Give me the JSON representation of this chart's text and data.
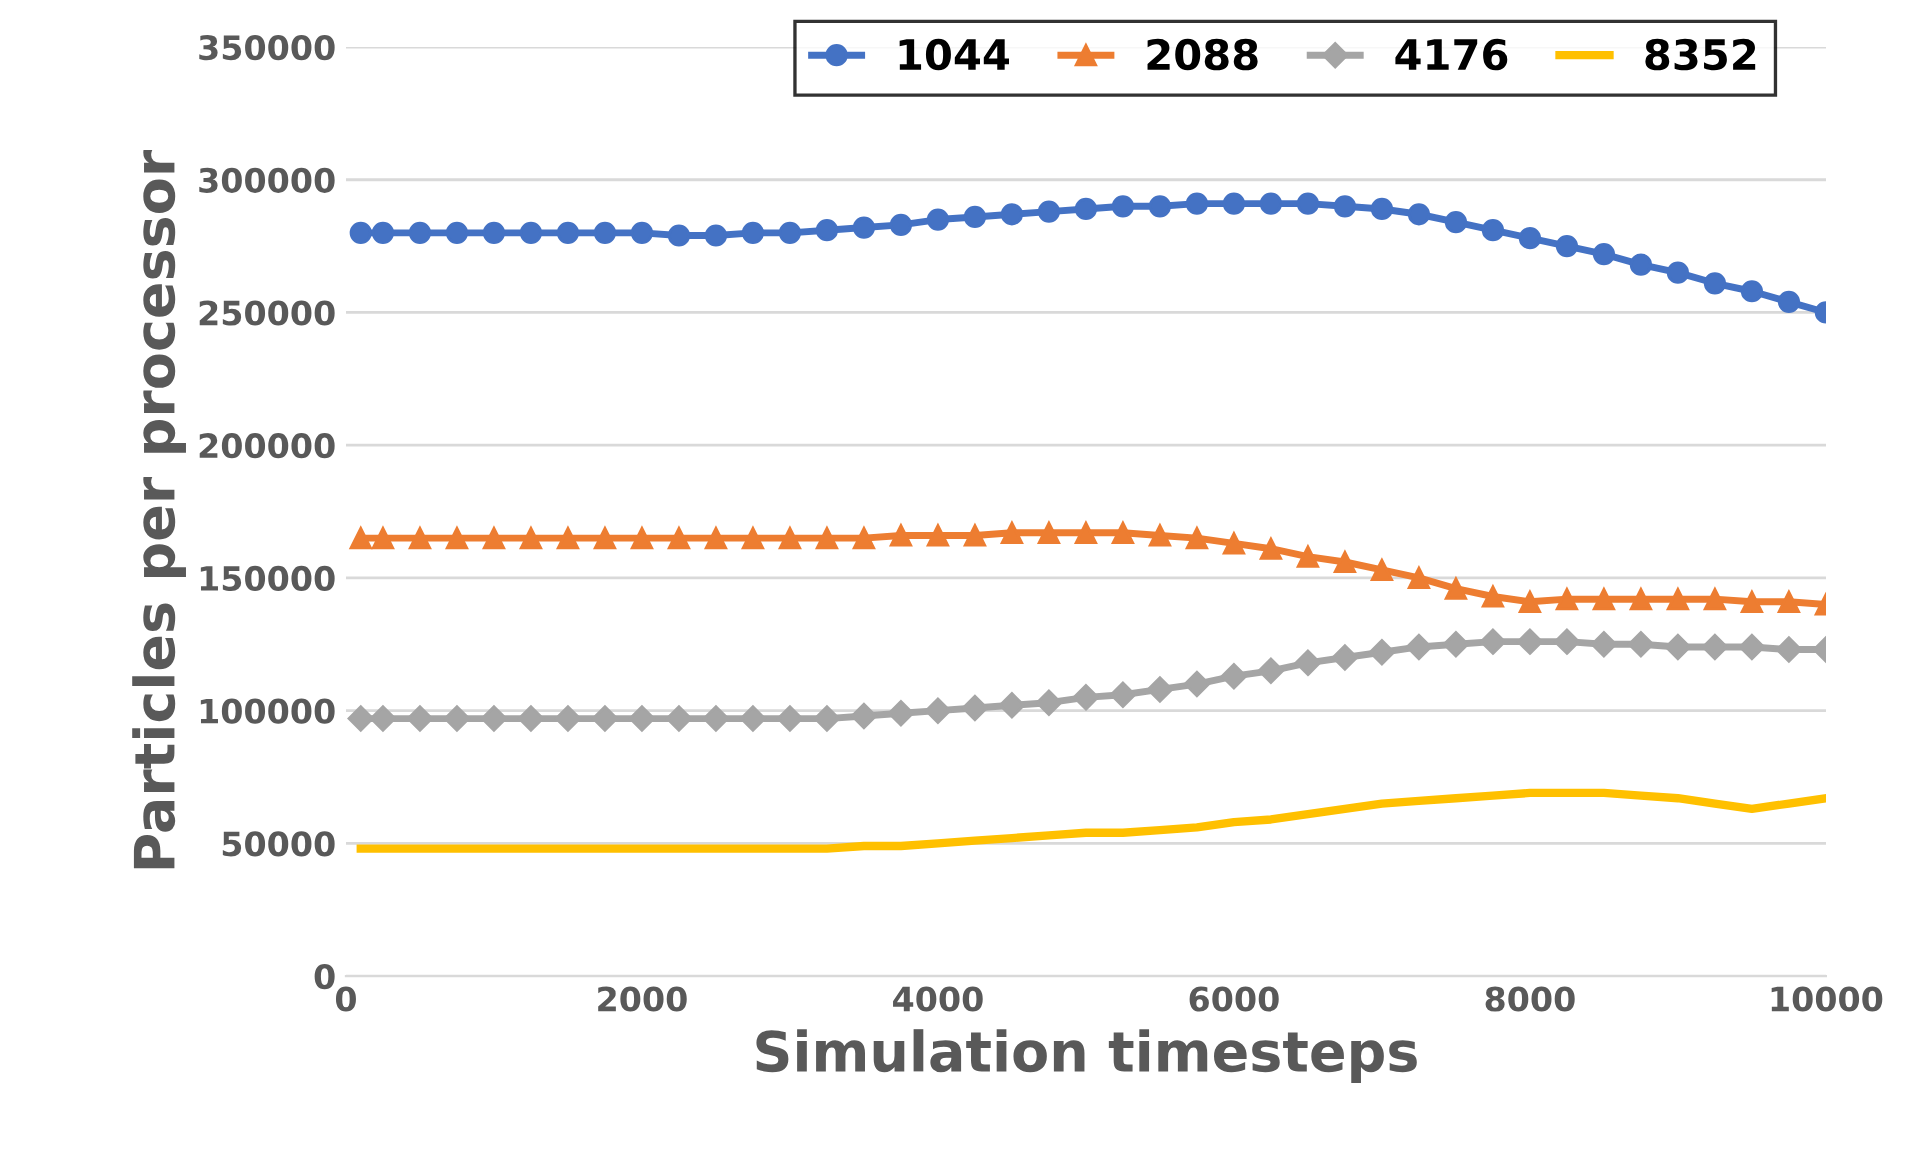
{
  "chart_data": {
    "type": "line",
    "xlabel": "Simulation timesteps",
    "ylabel": "Particles per processor",
    "x": [
      100,
      250,
      500,
      750,
      1000,
      1250,
      1500,
      1750,
      2000,
      2250,
      2500,
      2750,
      3000,
      3250,
      3500,
      3750,
      4000,
      4250,
      4500,
      4750,
      5000,
      5250,
      5500,
      5750,
      6000,
      6250,
      6500,
      6750,
      7000,
      7250,
      7500,
      7750,
      8000,
      8250,
      8500,
      8750,
      9000,
      9250,
      9500,
      9750,
      10000
    ],
    "series": [
      {
        "name": "1044",
        "color": "#4472c4",
        "marker": "circle",
        "values": [
          280000,
          280000,
          280000,
          280000,
          280000,
          280000,
          280000,
          280000,
          280000,
          279000,
          279000,
          280000,
          280000,
          281000,
          282000,
          283000,
          285000,
          286000,
          287000,
          288000,
          289000,
          290000,
          290000,
          291000,
          291000,
          291000,
          291000,
          290000,
          289000,
          287000,
          284000,
          281000,
          278000,
          275000,
          272000,
          268000,
          265000,
          261000,
          258000,
          254000,
          250000
        ]
      },
      {
        "name": "2088",
        "color": "#ed7d31",
        "marker": "triangle",
        "values": [
          165000,
          165000,
          165000,
          165000,
          165000,
          165000,
          165000,
          165000,
          165000,
          165000,
          165000,
          165000,
          165000,
          165000,
          165000,
          166000,
          166000,
          166000,
          167000,
          167000,
          167000,
          167000,
          166000,
          165000,
          163000,
          161000,
          158000,
          156000,
          153000,
          150000,
          146000,
          143000,
          141000,
          142000,
          142000,
          142000,
          142000,
          142000,
          141000,
          141000,
          140000
        ]
      },
      {
        "name": "4176",
        "color": "#a5a5a5",
        "marker": "diamond",
        "values": [
          97000,
          97000,
          97000,
          97000,
          97000,
          97000,
          97000,
          97000,
          97000,
          97000,
          97000,
          97000,
          97000,
          97000,
          98000,
          99000,
          100000,
          101000,
          102000,
          103000,
          105000,
          106000,
          108000,
          110000,
          113000,
          115000,
          118000,
          120000,
          122000,
          124000,
          125000,
          126000,
          126000,
          126000,
          125000,
          125000,
          124000,
          124000,
          124000,
          123000,
          123000
        ]
      },
      {
        "name": "8352",
        "color": "#ffc000",
        "marker": "none",
        "values": [
          48000,
          48000,
          48000,
          48000,
          48000,
          48000,
          48000,
          48000,
          48000,
          48000,
          48000,
          48000,
          48000,
          48000,
          49000,
          49000,
          50000,
          51000,
          52000,
          53000,
          54000,
          54000,
          55000,
          56000,
          58000,
          59000,
          61000,
          63000,
          65000,
          66000,
          67000,
          68000,
          69000,
          69000,
          69000,
          68000,
          67000,
          65000,
          63000,
          65000,
          67000
        ]
      }
    ],
    "xlim": [
      0,
      10000
    ],
    "xticks": [
      0,
      2000,
      4000,
      6000,
      8000,
      10000
    ],
    "ylim": [
      0,
      350000
    ],
    "yticks": [
      0,
      50000,
      100000,
      150000,
      200000,
      250000,
      300000,
      350000
    ],
    "grid": "y",
    "legend": "top right"
  }
}
